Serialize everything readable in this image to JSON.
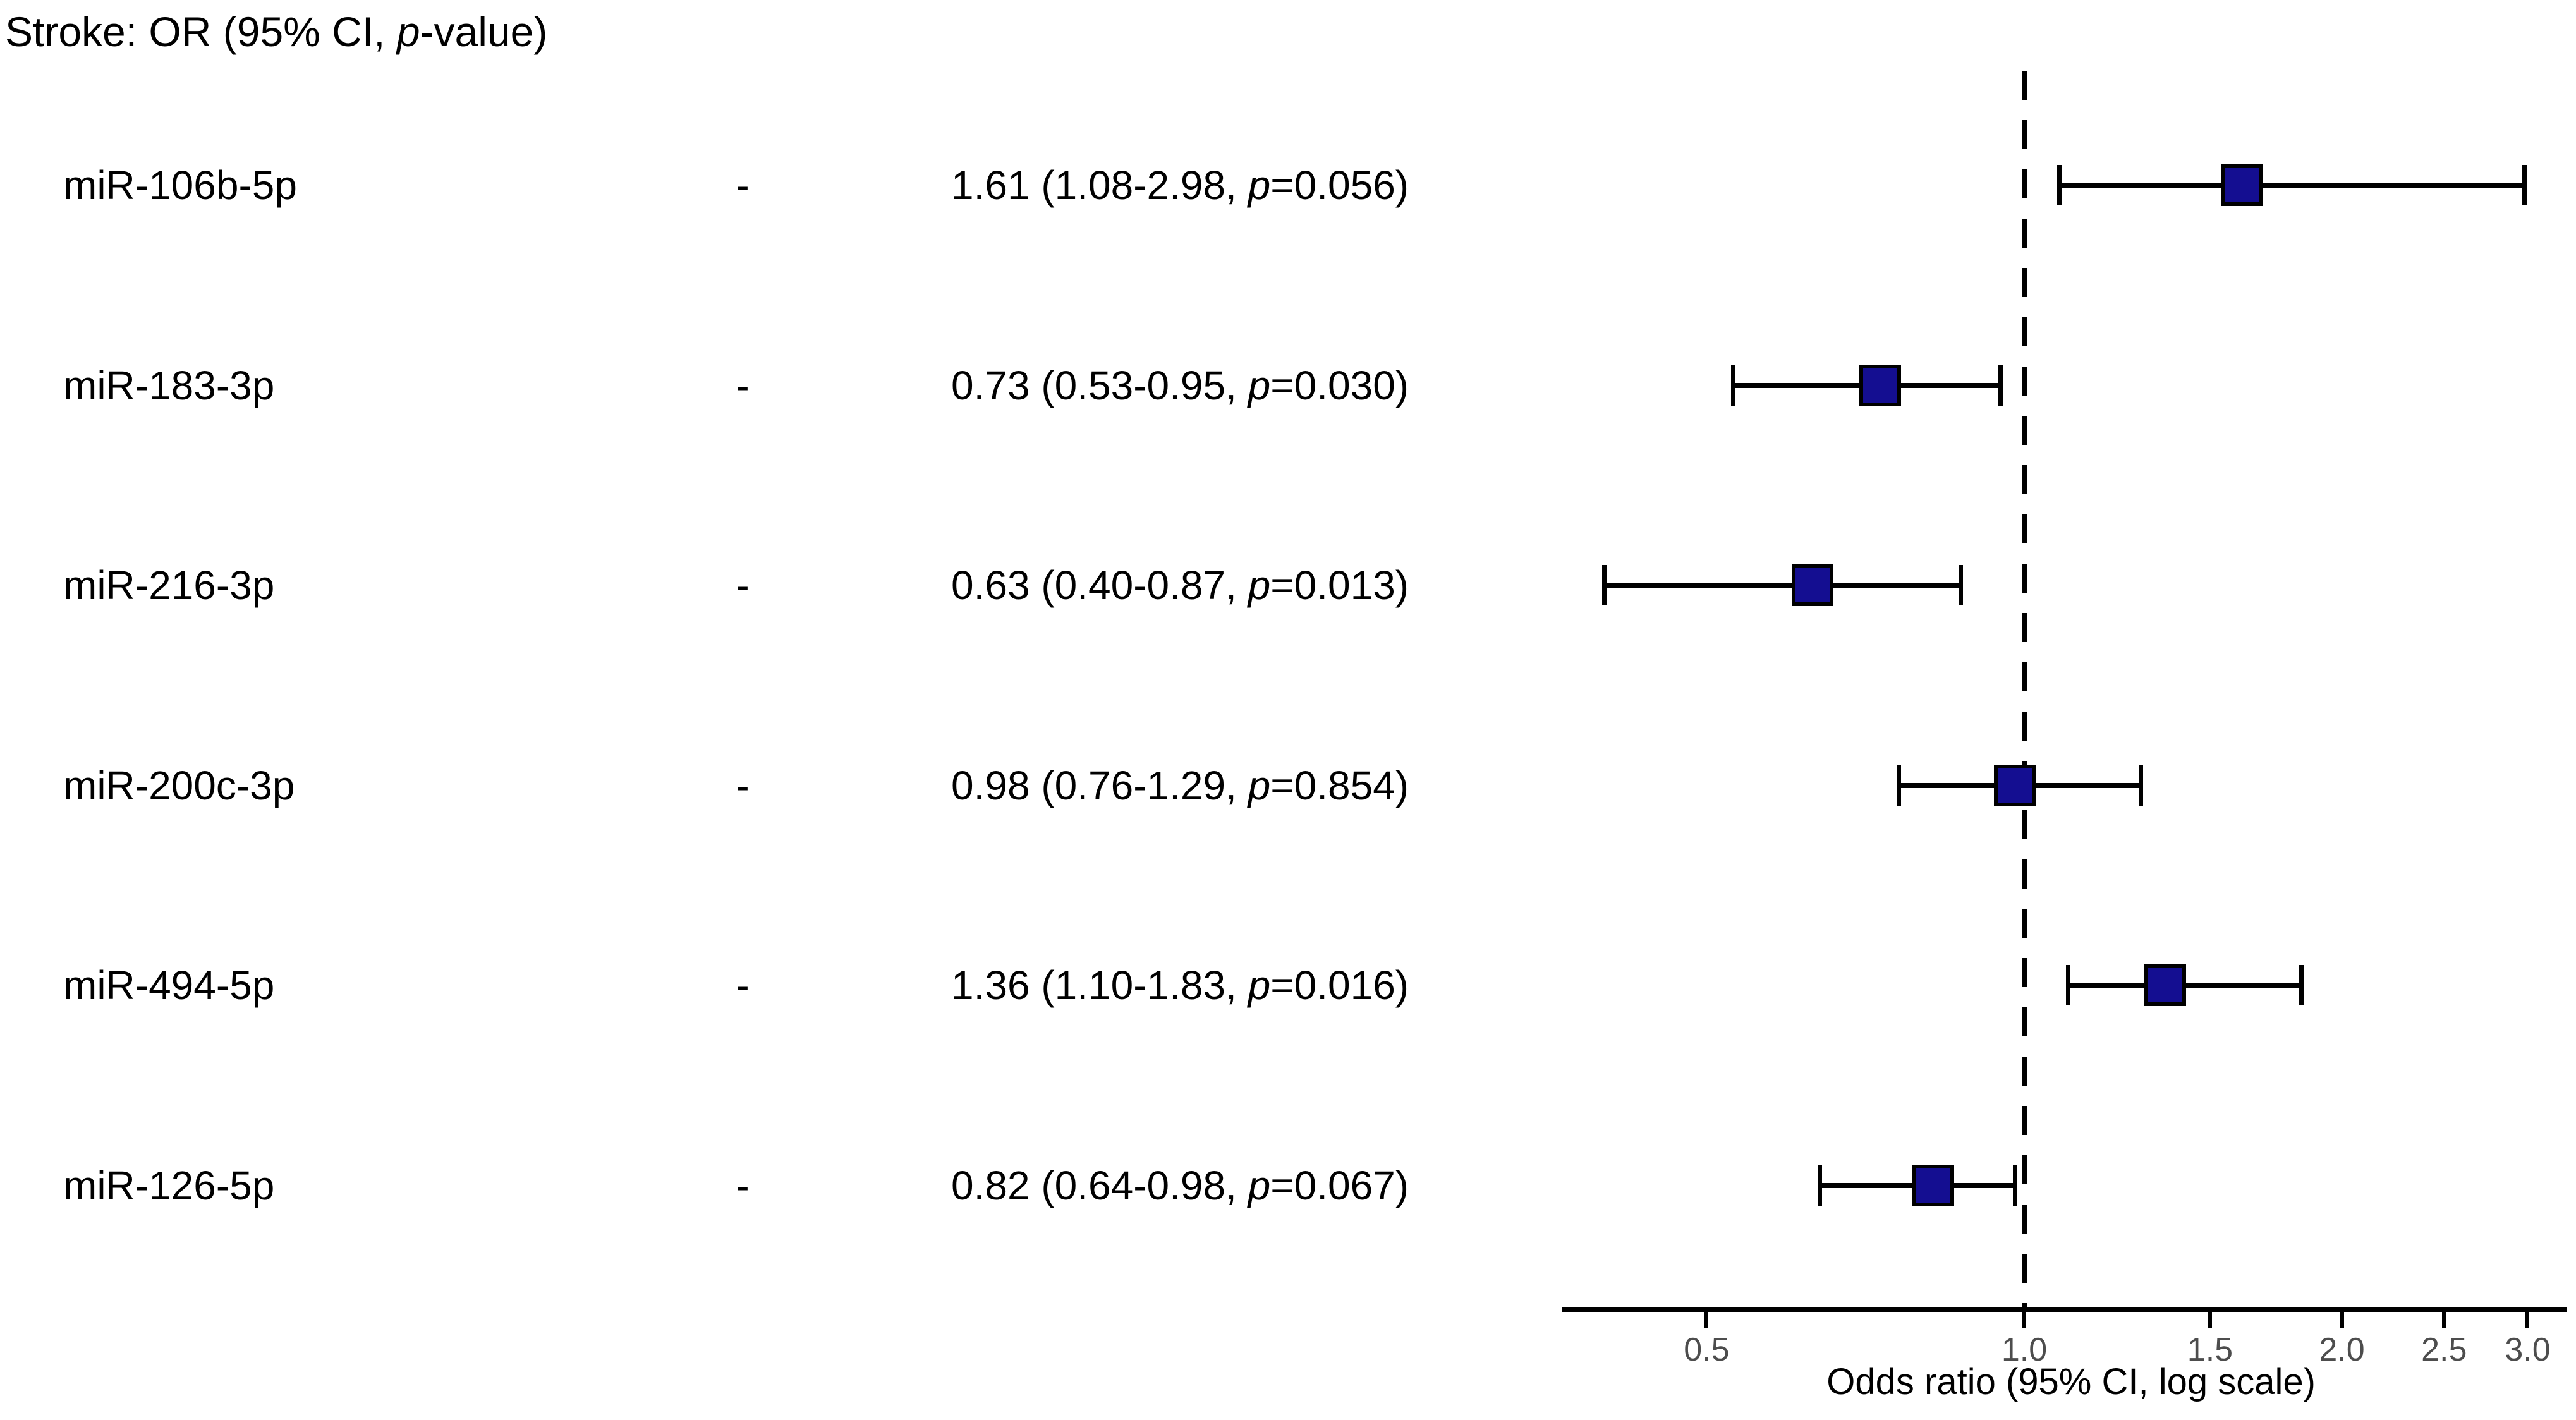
{
  "title": {
    "prefix": "Stroke: OR (95% CI, ",
    "p_italic": "p",
    "suffix": "-value)"
  },
  "chart_data": {
    "type": "scatter",
    "variant": "forest-plot",
    "scale": "log",
    "xlabel": "Odds ratio (95% CI, log scale)",
    "x_ticks": [
      0.5,
      1.0,
      1.5,
      2.0,
      2.5,
      3.0
    ],
    "x_tick_labels": [
      "0.5",
      "1.0",
      "1.5",
      "2.0",
      "2.5",
      "3.0"
    ],
    "xlim": [
      0.365,
      3.27
    ],
    "reference_line": 1.0,
    "marker_color": "#140E91",
    "axis_color": "#000000",
    "tick_label_color": "#4d4d4d",
    "rows": [
      {
        "label": "miR-106b-5p",
        "dash": "-",
        "or": 1.61,
        "ci_low": 1.08,
        "ci_high": 2.98,
        "p_value": 0.056,
        "value_prefix": "1.61 (1.08-2.98, ",
        "p_italic": "p",
        "value_suffix": "=0.056)"
      },
      {
        "label": "miR-183-3p",
        "dash": "-",
        "or": 0.73,
        "ci_low": 0.53,
        "ci_high": 0.95,
        "p_value": 0.03,
        "value_prefix": "0.73 (0.53-0.95, ",
        "p_italic": "p",
        "value_suffix": "=0.030)"
      },
      {
        "label": "miR-216-3p",
        "dash": "-",
        "or": 0.63,
        "ci_low": 0.4,
        "ci_high": 0.87,
        "p_value": 0.013,
        "value_prefix": "0.63 (0.40-0.87, ",
        "p_italic": "p",
        "value_suffix": "=0.013)"
      },
      {
        "label": "miR-200c-3p",
        "dash": "-",
        "or": 0.98,
        "ci_low": 0.76,
        "ci_high": 1.29,
        "p_value": 0.854,
        "value_prefix": "0.98 (0.76-1.29, ",
        "p_italic": "p",
        "value_suffix": "=0.854)"
      },
      {
        "label": "miR-494-5p",
        "dash": "-",
        "or": 1.36,
        "ci_low": 1.1,
        "ci_high": 1.83,
        "p_value": 0.016,
        "value_prefix": "1.36 (1.10-1.83, ",
        "p_italic": "p",
        "value_suffix": "=0.016)"
      },
      {
        "label": "miR-126-5p",
        "dash": "-",
        "or": 0.82,
        "ci_low": 0.64,
        "ci_high": 0.98,
        "p_value": 0.067,
        "value_prefix": "0.82 (0.64-0.98, ",
        "p_italic": "p",
        "value_suffix": "=0.067)"
      }
    ]
  }
}
